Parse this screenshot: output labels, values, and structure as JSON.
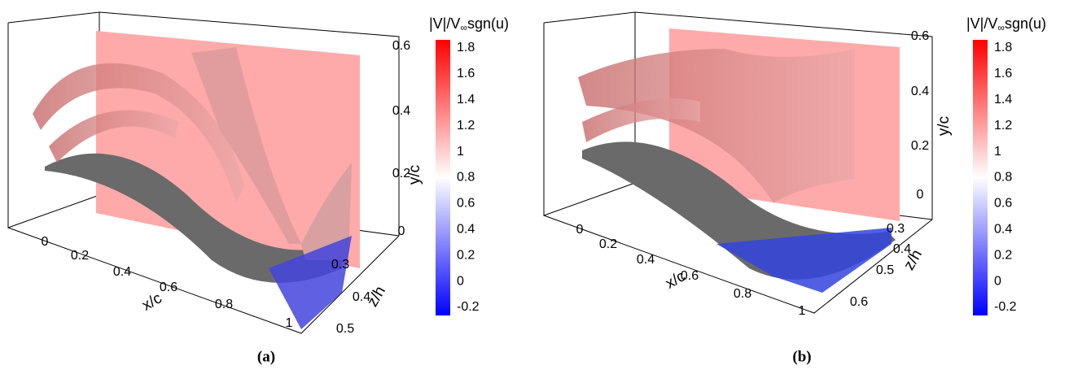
{
  "panels": [
    {
      "caption": "(a)",
      "colorbar": {
        "title": {
          "main": "|V|/V",
          "sub": "∞",
          "tail": "sgn(u)"
        },
        "ticks": [
          -0.2,
          0,
          0.2,
          0.4,
          0.6,
          0.8,
          1,
          1.2,
          1.4,
          1.6,
          1.8
        ]
      },
      "x_axis": {
        "label": "x/c",
        "ticks": [
          0,
          0.2,
          0.4,
          0.6,
          0.8,
          1
        ]
      },
      "y_axis": {
        "label": "y/c",
        "ticks": [
          0,
          0.2,
          0.4,
          0.6
        ]
      },
      "z_axis": {
        "label": "z/h",
        "ticks": [
          0.3,
          0.4,
          0.5
        ]
      }
    },
    {
      "caption": "(b)",
      "colorbar": {
        "title": {
          "main": "|V|/V",
          "sub": "∞",
          "tail": "sgn(u)"
        },
        "ticks": [
          -0.2,
          0,
          0.2,
          0.4,
          0.6,
          0.8,
          1,
          1.2,
          1.4,
          1.6,
          1.8
        ]
      },
      "x_axis": {
        "label": "x/c",
        "ticks": [
          0,
          0.2,
          0.4,
          0.6,
          0.8,
          1
        ]
      },
      "y_axis": {
        "label": "y/c",
        "ticks": [
          0,
          0.2,
          0.4,
          0.6
        ]
      },
      "z_axis": {
        "label": "z/h",
        "ticks": [
          0.3,
          0.4,
          0.5,
          0.6
        ]
      }
    }
  ]
}
